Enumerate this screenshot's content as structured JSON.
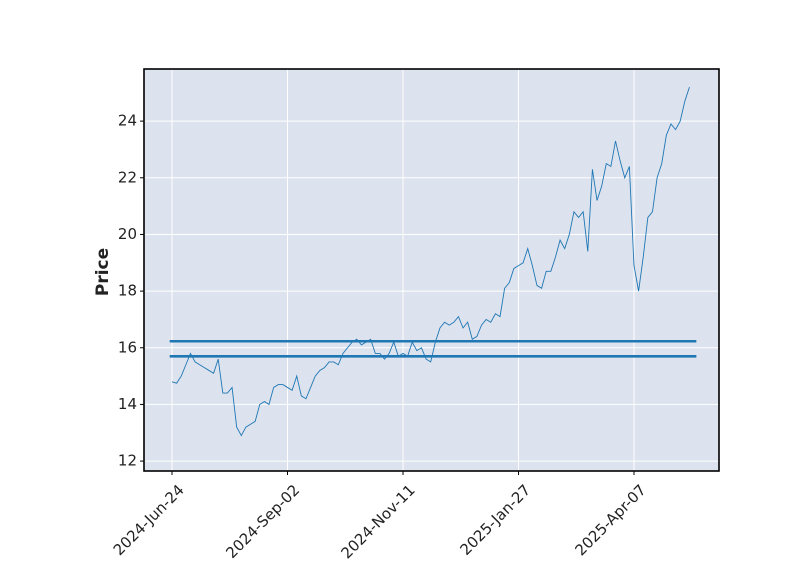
{
  "chart_data": {
    "type": "line",
    "ylabel": "Price",
    "categories": [
      "2024-Jun-24",
      null,
      null,
      null,
      null,
      null,
      null,
      null,
      null,
      null,
      null,
      null,
      null,
      null,
      null,
      null,
      null,
      null,
      null,
      null,
      null,
      null,
      null,
      null,
      null,
      "2024-Sep-02",
      null,
      null,
      null,
      null,
      null,
      null,
      null,
      null,
      null,
      null,
      null,
      null,
      null,
      null,
      null,
      null,
      null,
      null,
      null,
      null,
      null,
      null,
      null,
      null,
      "2024-Nov-11",
      null,
      null,
      null,
      null,
      null,
      null,
      null,
      null,
      null,
      null,
      null,
      null,
      null,
      null,
      null,
      null,
      null,
      null,
      null,
      null,
      null,
      null,
      null,
      null,
      "2025-Jan-27",
      null,
      null,
      null,
      null,
      null,
      null,
      null,
      null,
      null,
      null,
      null,
      null,
      null,
      null,
      null,
      null,
      null,
      null,
      null,
      null,
      null,
      null,
      null,
      null,
      "2025-Apr-07",
      null,
      null,
      null,
      null,
      null,
      null,
      null,
      null,
      null,
      null,
      null,
      null
    ],
    "values": [
      14.8,
      14.75,
      15.0,
      15.4,
      15.8,
      15.5,
      15.4,
      15.3,
      15.2,
      15.1,
      15.6,
      14.4,
      14.4,
      14.6,
      13.2,
      12.9,
      13.2,
      13.3,
      13.4,
      14.0,
      14.1,
      14.0,
      14.6,
      14.7,
      14.7,
      14.6,
      14.5,
      15.0,
      14.3,
      14.2,
      14.6,
      15.0,
      15.2,
      15.3,
      15.5,
      15.5,
      15.4,
      15.8,
      16.0,
      16.2,
      16.3,
      16.1,
      16.2,
      16.3,
      15.8,
      15.8,
      15.6,
      15.8,
      16.2,
      15.7,
      15.8,
      15.7,
      16.2,
      15.9,
      16.0,
      15.6,
      15.5,
      16.2,
      16.7,
      16.9,
      16.8,
      16.9,
      17.1,
      16.7,
      16.9,
      16.3,
      16.4,
      16.8,
      17.0,
      16.9,
      17.2,
      17.1,
      18.1,
      18.3,
      18.8,
      18.9,
      19.0,
      19.5,
      18.9,
      18.2,
      18.1,
      18.7,
      18.7,
      19.2,
      19.8,
      19.5,
      20.0,
      20.8,
      20.6,
      20.8,
      19.4,
      22.3,
      21.2,
      21.7,
      22.5,
      22.4,
      23.3,
      22.6,
      22.0,
      22.4,
      18.9,
      18.0,
      19.2,
      20.6,
      20.8,
      22.0,
      22.5,
      23.5,
      23.9,
      23.7,
      24.0,
      24.7,
      25.2
    ],
    "color": "#1f77b4",
    "hlines": [
      16.23,
      15.7
    ],
    "hline_color": "#1f77b4",
    "xlim": [
      -6.06,
      118.4
    ],
    "ylim": [
      11.65,
      25.84
    ],
    "yticks": [
      12,
      14,
      16,
      18,
      20,
      22,
      24
    ],
    "grid": true,
    "background": "#dce2ee"
  }
}
